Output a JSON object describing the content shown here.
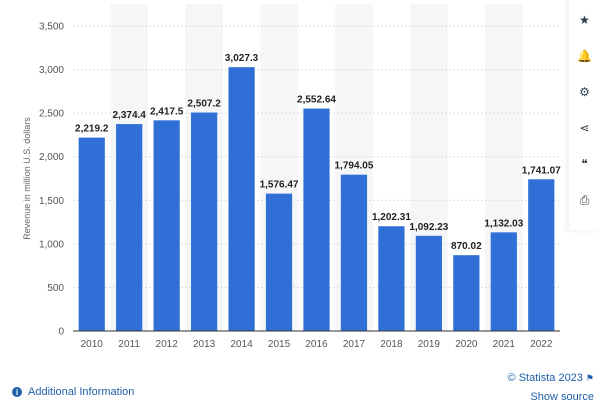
{
  "chart_data": {
    "type": "bar",
    "categories": [
      "2010",
      "2011",
      "2012",
      "2013",
      "2014",
      "2015",
      "2016",
      "2017",
      "2018",
      "2019",
      "2020",
      "2021",
      "2022"
    ],
    "values": [
      2219.2,
      2374.4,
      2417.5,
      2507.2,
      3027.3,
      1576.47,
      2552.64,
      1794.05,
      1202.31,
      1092.23,
      870.02,
      1132.03,
      1741.07
    ],
    "value_labels": [
      "2,219.2",
      "2,374.4",
      "2,417.5",
      "2,507.2",
      "3,027.3",
      "1,576.47",
      "2,552.64",
      "1,794.05",
      "1,202.31",
      "1,092.23",
      "870.02",
      "1,132.03",
      "1,741.07"
    ],
    "ylabel": "Revenue in million U.S. dollars",
    "ylim": [
      0,
      3500
    ],
    "yticks": [
      0,
      500,
      1000,
      1500,
      2000,
      2500,
      3000,
      3500
    ],
    "ytick_labels": [
      "0",
      "500",
      "1,000",
      "1,500",
      "2,000",
      "2,500",
      "3,000",
      "3,500"
    ],
    "grid": true,
    "alternating_column_bands": true,
    "bar_color": "#2f6fd6"
  },
  "side_tools": [
    {
      "name": "star-icon",
      "glyph": "★"
    },
    {
      "name": "bell-icon",
      "glyph": "🔔"
    },
    {
      "name": "gear-icon",
      "glyph": "⚙"
    },
    {
      "name": "share-icon",
      "glyph": "⋖"
    },
    {
      "name": "quote-icon",
      "glyph": "❝"
    },
    {
      "name": "print-icon",
      "glyph": "⎙"
    }
  ],
  "footer": {
    "additional_info": "Additional Information",
    "copyright": "© Statista 2023",
    "show_source": "Show source",
    "info_glyph": "i",
    "flag_glyph": "⚑"
  }
}
